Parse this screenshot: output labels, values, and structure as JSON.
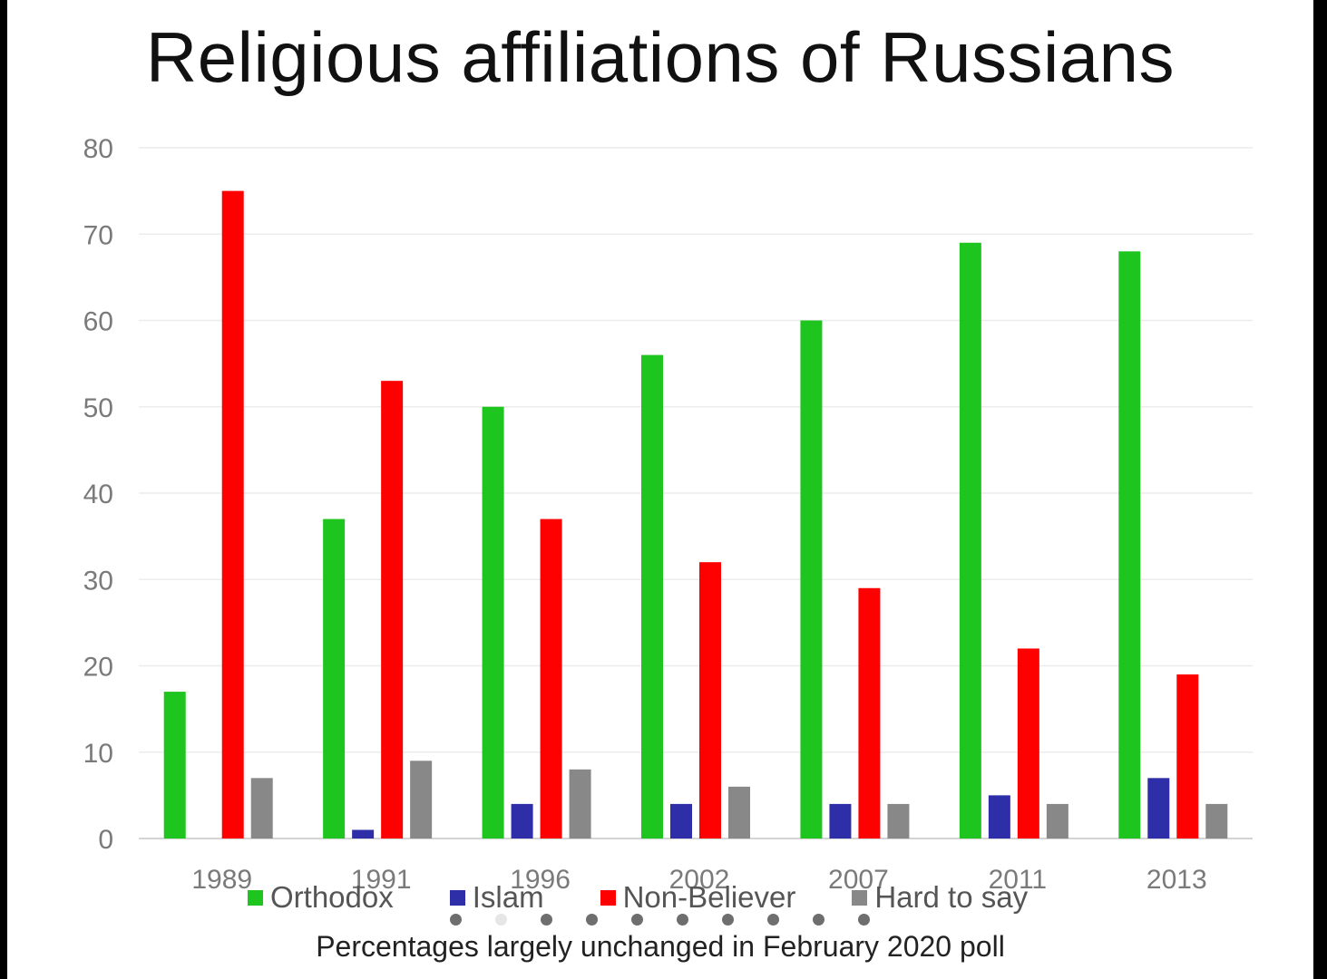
{
  "chart_data": {
    "type": "bar",
    "title": "Religious affiliations of Russians",
    "categories": [
      "1989",
      "1991",
      "1996",
      "2002",
      "2007",
      "2011",
      "2013"
    ],
    "series": [
      {
        "name": "Orthodox",
        "color": "#1ec51e",
        "values": [
          17,
          37,
          50,
          56,
          60,
          69,
          68
        ]
      },
      {
        "name": "Islam",
        "color": "#2e2ea8",
        "values": [
          0,
          1,
          4,
          4,
          4,
          5,
          7
        ]
      },
      {
        "name": "Non-Believer",
        "color": "#ff0000",
        "values": [
          75,
          53,
          37,
          32,
          29,
          22,
          19
        ]
      },
      {
        "name": "Hard to say",
        "color": "#888888",
        "values": [
          7,
          9,
          8,
          6,
          4,
          4,
          4
        ]
      }
    ],
    "ylim": [
      0,
      80
    ],
    "yticks": [
      0,
      10,
      20,
      30,
      40,
      50,
      60,
      70,
      80
    ],
    "grid": true,
    "legend": "bottom"
  },
  "caption": "Percentages largely unchanged in February 2020 poll",
  "carousel": {
    "active_dot": 1,
    "count": 10
  }
}
